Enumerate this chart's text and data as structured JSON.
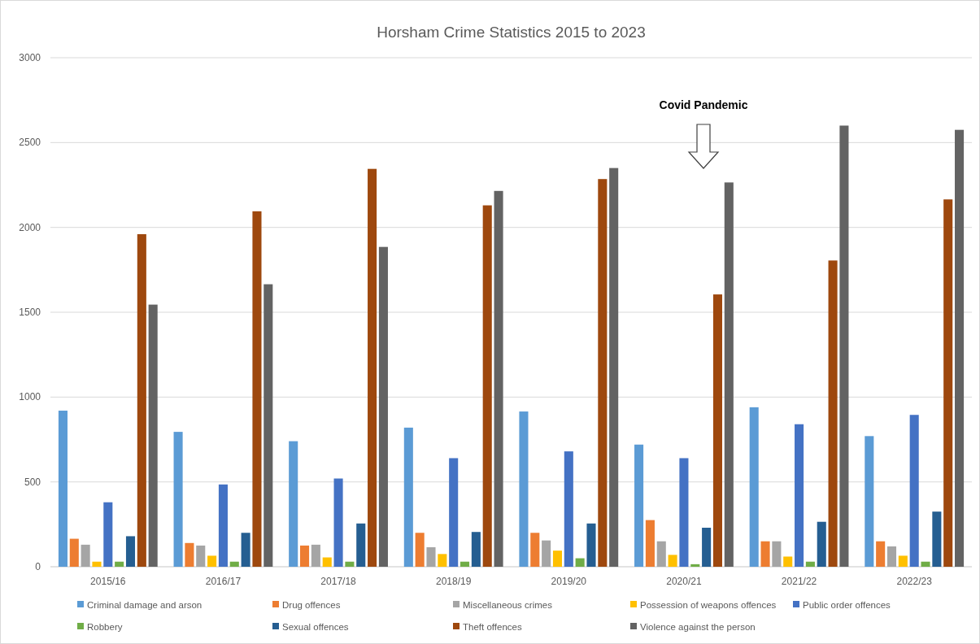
{
  "chart_data": {
    "type": "bar",
    "title": "Horsham Crime Statistics 2015 to 2023",
    "categories": [
      "2015/16",
      "2016/17",
      "2017/18",
      "2018/19",
      "2019/20",
      "2020/21",
      "2021/22",
      "2022/23"
    ],
    "series": [
      {
        "name": "Criminal damage and arson",
        "color": "#5b9bd5",
        "values": [
          920,
          795,
          740,
          820,
          915,
          720,
          940,
          770
        ]
      },
      {
        "name": "Drug offences",
        "color": "#ed7d31",
        "values": [
          165,
          140,
          125,
          200,
          200,
          275,
          150,
          150
        ]
      },
      {
        "name": "Miscellaneous crimes",
        "color": "#a5a5a5",
        "values": [
          130,
          125,
          130,
          115,
          155,
          150,
          150,
          120
        ]
      },
      {
        "name": "Possession of weapons offences",
        "color": "#ffc000",
        "values": [
          30,
          65,
          55,
          75,
          95,
          70,
          60,
          65
        ]
      },
      {
        "name": "Public order offences",
        "color": "#4472c4",
        "values": [
          380,
          485,
          520,
          640,
          680,
          640,
          840,
          895
        ]
      },
      {
        "name": "Robbery",
        "color": "#70ad47",
        "values": [
          30,
          30,
          30,
          30,
          50,
          15,
          30,
          30
        ]
      },
      {
        "name": "Sexual offences",
        "color": "#255e91",
        "values": [
          180,
          200,
          255,
          205,
          255,
          230,
          265,
          325
        ]
      },
      {
        "name": "Theft offences",
        "color": "#9e480e",
        "values": [
          1960,
          2095,
          2345,
          2130,
          2285,
          1605,
          1805,
          2165
        ]
      },
      {
        "name": "Violence against the person",
        "color": "#636363",
        "values": [
          1545,
          1665,
          1885,
          2215,
          2350,
          2265,
          2600,
          2575
        ]
      }
    ],
    "ylim": [
      0,
      3000
    ],
    "yticks": [
      0,
      500,
      1000,
      1500,
      2000,
      2500,
      3000
    ],
    "grid": "y",
    "legend": "bottom",
    "annotations": [
      "Covid Pandemic"
    ]
  }
}
